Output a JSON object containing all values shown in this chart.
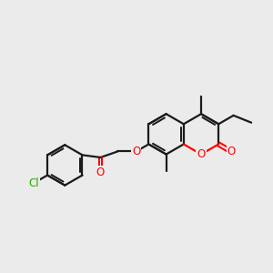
{
  "bg_color": "#ebebeb",
  "bond_color": "#1a1a1a",
  "o_color": "#ff0000",
  "cl_color": "#22aa00",
  "lw": 1.6,
  "fig_size": [
    3.0,
    3.0
  ],
  "dpi": 100,
  "xlim": [
    -2.5,
    9.0
  ],
  "ylim": [
    -3.0,
    4.0
  ]
}
